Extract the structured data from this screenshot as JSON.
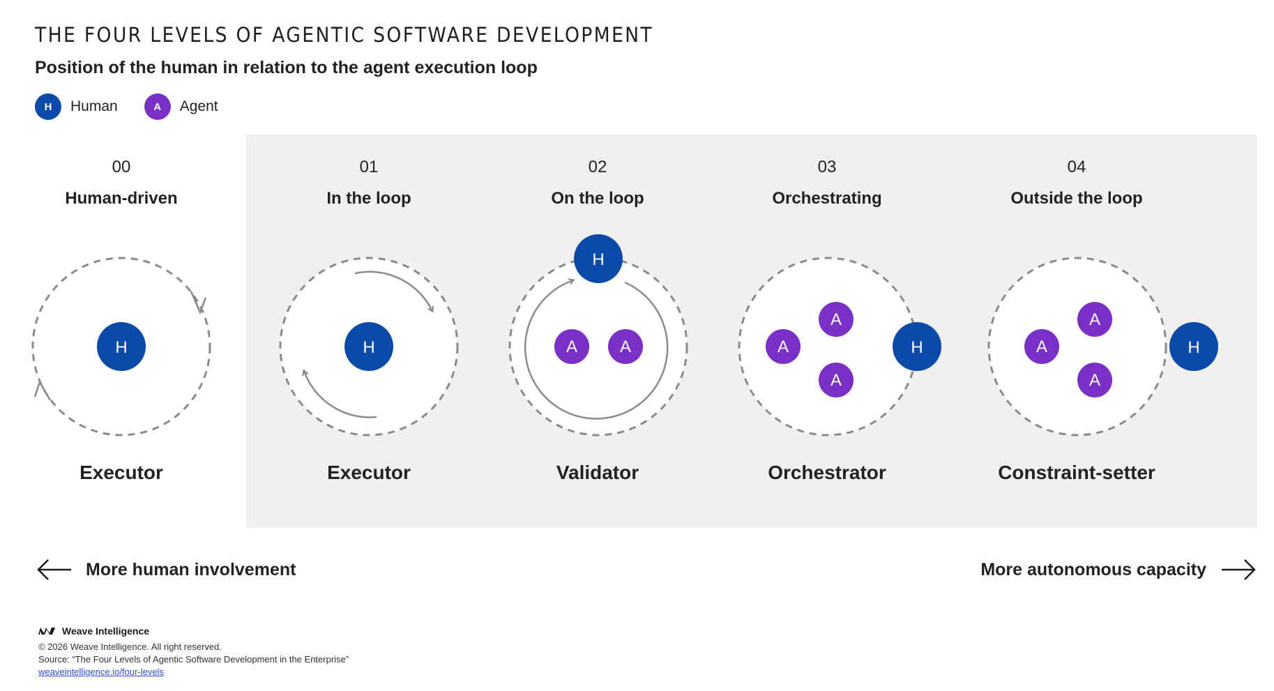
{
  "title": "THE FOUR LEVELS OF AGENTIC SOFTWARE DEVELOPMENT",
  "subtitle": "Position of the human in relation to the agent execution loop",
  "legend": {
    "human": {
      "badge": "H",
      "label": "Human",
      "color": "#0b4aa8"
    },
    "agent": {
      "badge": "A",
      "label": "Agent",
      "color": "#7a2fc7"
    }
  },
  "levels": [
    {
      "num": "00",
      "name": "Human-driven",
      "role": "Executor"
    },
    {
      "num": "01",
      "name": "In the loop",
      "role": "Executor"
    },
    {
      "num": "02",
      "name": "On the loop",
      "role": "Validator"
    },
    {
      "num": "03",
      "name": "Orchestrating",
      "role": "Orchestrator"
    },
    {
      "num": "04",
      "name": "Outside the loop",
      "role": "Constraint-setter"
    }
  ],
  "axis": {
    "left_label": "More human involvement",
    "right_label": "More autonomous capacity"
  },
  "footer": {
    "brand": "Weave Intelligence",
    "copyright": "© 2026 Weave Intelligence. All right reserved.",
    "source": "Source: “The Four Levels of Agentic Software Development in the Enterprise”",
    "link": "weaveintelligence.io/four-levels"
  },
  "colors": {
    "panel": "#f1f0ef",
    "loop": "#8a8a8a"
  }
}
